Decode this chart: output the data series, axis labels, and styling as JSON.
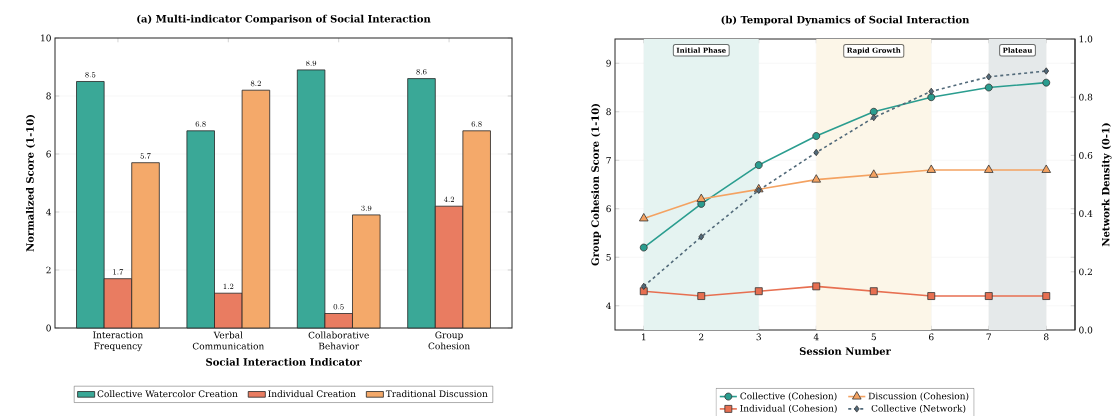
{
  "chart_data": [
    {
      "type": "bar",
      "title": "(a) Multi-indicator Comparison of Social Interaction",
      "xlabel": "Social Interaction Indicator",
      "ylabel": "Normalized Score (1-10)",
      "categories": [
        "Interaction\nFrequency",
        "Verbal\nCommunication",
        "Collaborative\nBehavior",
        "Group\nCohesion"
      ],
      "series": [
        {
          "name": "Collective Watercolor Creation",
          "color": "#3aa897",
          "values": [
            8.5,
            6.8,
            8.9,
            8.6
          ]
        },
        {
          "name": "Individual Creation",
          "color": "#e97c61",
          "values": [
            1.7,
            1.2,
            0.5,
            4.2
          ]
        },
        {
          "name": "Traditional Discussion",
          "color": "#f4a96a",
          "values": [
            5.7,
            8.2,
            3.9,
            6.8
          ]
        }
      ],
      "ylim": [
        0,
        10
      ],
      "yticks": [
        0,
        2,
        4,
        6,
        8,
        10
      ],
      "grid": "y",
      "legend": "bottom",
      "data_labels": true
    },
    {
      "type": "line",
      "title": "(b) Temporal Dynamics of Social Interaction",
      "xlabel": "Session Number",
      "ylabel": "Group Cohesion Score (1-10)",
      "y2label": "Network Density (0-1)",
      "x": [
        1,
        2,
        3,
        4,
        5,
        6,
        7,
        8
      ],
      "series": [
        {
          "name": "Collective (Cohesion)",
          "color": "#2a9d8f",
          "marker": "circle",
          "line_style": "solid",
          "values": [
            5.2,
            6.1,
            6.9,
            7.5,
            8.0,
            8.3,
            8.5,
            8.6
          ]
        },
        {
          "name": "Individual (Cohesion)",
          "color": "#e76f51",
          "marker": "square",
          "line_style": "solid",
          "values": [
            4.3,
            4.2,
            4.3,
            4.4,
            4.3,
            4.2,
            4.2,
            4.2
          ]
        },
        {
          "name": "Discussion (Cohesion)",
          "color": "#f4a261",
          "marker": "triangle",
          "line_style": "solid",
          "values": [
            5.8,
            6.2,
            6.4,
            6.6,
            6.7,
            6.8,
            6.8,
            6.8
          ]
        },
        {
          "name": "Collective (Network)",
          "color": "#526a7a",
          "marker": "diamond",
          "line_style": "dashed",
          "axis": "y2",
          "values": [
            0.15,
            0.32,
            0.48,
            0.61,
            0.73,
            0.82,
            0.87,
            0.89
          ]
        }
      ],
      "bands": [
        {
          "axis": "x",
          "from": 1,
          "to": 3,
          "label": "Initial Phase",
          "color": "#e5f3f1"
        },
        {
          "axis": "x",
          "from": 4,
          "to": 6,
          "label": "Rapid Growth",
          "color": "#fcf6e8"
        },
        {
          "axis": "x",
          "from": 7,
          "to": 8,
          "label": "Plateau",
          "color": "#e5e9ea"
        }
      ],
      "xlim": [
        0.5,
        8.5
      ],
      "xticks": [
        1,
        2,
        3,
        4,
        5,
        6,
        7,
        8
      ],
      "ylim": [
        3.5,
        9.5
      ],
      "yticks": [
        4,
        5,
        6,
        7,
        8,
        9
      ],
      "y2lim": [
        0,
        1
      ],
      "y2ticks": [
        {
          "value": 0,
          "label": "0.0"
        },
        {
          "value": 0.2,
          "label": "0.2"
        },
        {
          "value": 0.4,
          "label": "0.4"
        },
        {
          "value": 0.6,
          "label": "0.6"
        },
        {
          "value": 0.8,
          "label": "0.8"
        },
        {
          "value": 1,
          "label": "1.0"
        }
      ],
      "grid": true,
      "legend": "bottom"
    }
  ]
}
